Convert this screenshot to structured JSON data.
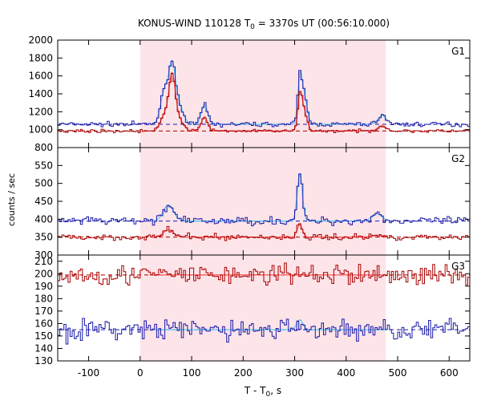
{
  "chart_data": {
    "type": "line",
    "title": "KONUS-WIND 110128 T",
    "title_sub": "0",
    "title_rest": " = 3370s UT (00:56:10.000)",
    "xlabel": "T - T",
    "xlabel_sub": "0",
    "xlabel_rest": ", s",
    "ylabel": "counts / sec",
    "xlim": [
      -160,
      640
    ],
    "x_ticks": [
      -100,
      0,
      100,
      200,
      300,
      400,
      500,
      600
    ],
    "shaded_interval": [
      0,
      477
    ],
    "colors": {
      "red_series": "#aa0000",
      "blue_series": "#1a1aaa",
      "red_fit": "#ff5050",
      "blue_fit": "#55c8f0",
      "shade": "#fde4e8"
    },
    "panels": [
      {
        "name": "G1",
        "ylim": [
          800,
          2000
        ],
        "y_ticks": [
          800,
          1000,
          1200,
          1400,
          1600,
          1800,
          2000
        ],
        "y_tick_labels": [
          "800",
          "1000",
          "1200",
          "1400",
          "1600",
          "1800",
          "2000"
        ],
        "baselines": {
          "blue": 1060,
          "red": 985
        },
        "series": [
          {
            "color_key": "blue",
            "noise": 18,
            "bursts": [
              [
                48,
                8,
                380
              ],
              [
                62,
                6,
                480
              ],
              [
                72,
                10,
                250
              ],
              [
                125,
                6,
                220
              ],
              [
                310,
                4,
                450
              ],
              [
                318,
                6,
                320
              ],
              [
                470,
                8,
                100
              ]
            ]
          },
          {
            "color_key": "red",
            "noise": 12,
            "bursts": [
              [
                48,
                8,
                180
              ],
              [
                62,
                6,
                520
              ],
              [
                72,
                10,
                150
              ],
              [
                125,
                6,
                160
              ],
              [
                310,
                4,
                350
              ],
              [
                318,
                6,
                220
              ],
              [
                470,
                8,
                60
              ]
            ]
          }
        ]
      },
      {
        "name": "G2",
        "ylim": [
          300,
          600
        ],
        "y_ticks": [
          300,
          350,
          400,
          450,
          500,
          550
        ],
        "y_tick_labels": [
          "300",
          "350",
          "400",
          "450",
          "500",
          "550"
        ],
        "baselines": {
          "blue": 395,
          "red": 350
        },
        "series": [
          {
            "color_key": "blue",
            "noise": 8,
            "bursts": [
              [
                55,
                10,
                45
              ],
              [
                310,
                5,
                130
              ],
              [
                460,
                10,
                20
              ]
            ]
          },
          {
            "color_key": "red",
            "noise": 6,
            "bursts": [
              [
                55,
                10,
                20
              ],
              [
                310,
                5,
                35
              ],
              [
                460,
                10,
                5
              ]
            ]
          }
        ]
      },
      {
        "name": "G3",
        "ylim": [
          130,
          215
        ],
        "y_ticks": [
          130,
          140,
          150,
          160,
          170,
          180,
          190,
          200,
          210
        ],
        "y_tick_labels": [
          "130",
          "140",
          "150",
          "160",
          "170",
          "180",
          "190",
          "200",
          "210"
        ],
        "baselines": {
          "blue": 155,
          "red": 199
        },
        "series": [
          {
            "color_key": "blue",
            "noise": 6,
            "bursts": [
              [
                310,
                6,
                8
              ]
            ]
          },
          {
            "color_key": "red",
            "noise": 6,
            "bursts": []
          }
        ]
      }
    ]
  }
}
